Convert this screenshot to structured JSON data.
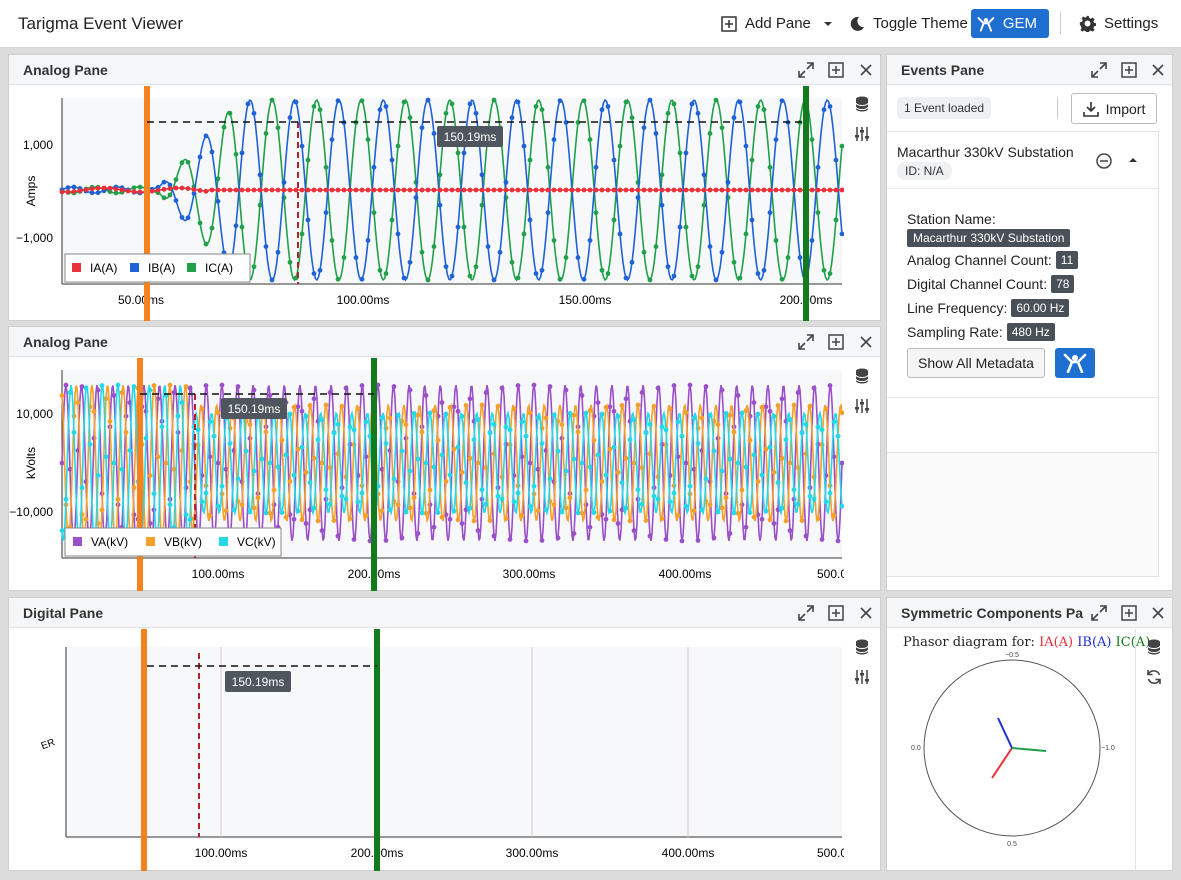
{
  "app": {
    "title": "Tarigma Event Viewer",
    "nav": {
      "add_pane": "Add Pane",
      "toggle_theme": "Toggle Theme",
      "gem": "GEM",
      "settings": "Settings"
    }
  },
  "colors": {
    "ia": "#e8313b",
    "ib": "#1f62d6",
    "ic": "#21a04a",
    "va": "#9b4fc9",
    "vb": "#f5a02a",
    "vc": "#23d9e8",
    "cursor_a": "#f5821f",
    "cursor_b": "#137a1d",
    "cursor_mid": "#b02525",
    "accent": "#1f6fd1"
  },
  "panes": {
    "analog_current": {
      "title": "Analog Pane",
      "ylabel": "Amps",
      "y_ticks": [
        "1,000",
        "−1,000"
      ],
      "x_ticks": [
        "50.00ms",
        "100.00ms",
        "150.00ms",
        "200.00ms"
      ],
      "legend": [
        "IA(A)",
        "IB(A)",
        "IC(A)"
      ],
      "delta_label": "150.19ms"
    },
    "analog_voltage": {
      "title": "Analog Pane",
      "ylabel": "kVolts",
      "y_ticks": [
        "10,000",
        "−10,000"
      ],
      "x_ticks": [
        "100.00ms",
        "200.00ms",
        "300.00ms",
        "400.00ms",
        "500.0"
      ],
      "legend": [
        "VA(kV)",
        "VB(kV)",
        "VC(kV)"
      ],
      "delta_label": "150.19ms"
    },
    "digital": {
      "title": "Digital Pane",
      "ylabel": "ER",
      "x_ticks": [
        "100.00ms",
        "200.00ms",
        "300.00ms",
        "400.00ms",
        "500.0"
      ],
      "delta_label": "150.19ms"
    },
    "events": {
      "title": "Events Pane",
      "loaded_badge": "1 Event loaded",
      "import_label": "Import",
      "event": {
        "name": "Macarthur 330kV Substation",
        "id": "ID: N/A",
        "station_name_label": "Station Name:",
        "station_name_value": "Macarthur 330kV Substation",
        "analog_count_label": "Analog Channel Count:",
        "analog_count_value": "11",
        "digital_count_label": "Digital Channel Count:",
        "digital_count_value": "78",
        "line_freq_label": "Line Frequency:",
        "line_freq_value": "60.00 Hz",
        "sampling_label": "Sampling Rate:",
        "sampling_value": "480 Hz",
        "show_metadata_label": "Show All Metadata"
      }
    },
    "symmetric": {
      "title": "Symmetric Components Pa",
      "caption_prefix": "Phasor diagram for:",
      "caption_ia": "IA(A)",
      "caption_ib": "IB(A)",
      "caption_ic": "IC(A)",
      "tick_top": "−0.5",
      "tick_bottom": "0.5",
      "tick_left": "0.0",
      "tick_right": "−1.0"
    }
  }
}
